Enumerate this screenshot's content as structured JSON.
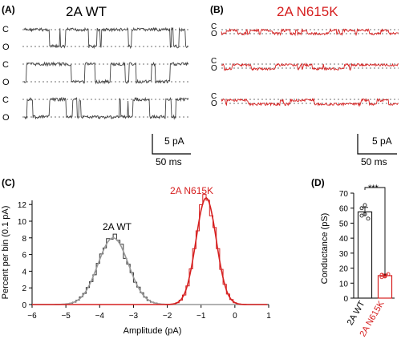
{
  "panels": {
    "A": {
      "letter": "(A)",
      "title": "2A WT",
      "trace_labels": [
        "C",
        "O"
      ],
      "scale_current": "5 pA",
      "scale_time": "50 ms",
      "trace_color": "#444444"
    },
    "B": {
      "letter": "(B)",
      "title": "2A N615K",
      "trace_labels": [
        "C",
        "O"
      ],
      "scale_current": "5 pA",
      "scale_time": "50 ms",
      "trace_color": "#d62020"
    },
    "C": {
      "letter": "(C)",
      "wt_label": "2A WT",
      "mut_label": "2A N615K"
    },
    "D": {
      "letter": "(D)",
      "significance": "***"
    }
  },
  "chart_data": [
    {
      "type": "histogram",
      "xlabel": "Amplitude (pA)",
      "ylabel": "Percent per bin (0.1 pA)",
      "xlim": [
        -6,
        1
      ],
      "ylim": [
        0,
        12.5
      ],
      "xticks": [
        -6,
        -5,
        -4,
        -3,
        -2,
        -1,
        0,
        1
      ],
      "yticks": [
        0,
        2,
        4,
        6,
        8,
        10,
        12
      ],
      "series": [
        {
          "name": "2A WT",
          "color": "#333333",
          "fit_mean": -3.6,
          "fit_sd": 0.45,
          "fit_peak": 8.0
        },
        {
          "name": "2A N615K",
          "color": "#d62020",
          "fit_mean": -0.85,
          "fit_sd": 0.3,
          "fit_peak": 12.8
        }
      ]
    },
    {
      "type": "bar",
      "categories": [
        "2A WT",
        "2A N615K"
      ],
      "values": [
        57.5,
        15
      ],
      "errors": [
        3,
        1
      ],
      "points": [
        [
          60,
          56,
          53,
          55,
          62
        ],
        [
          14,
          15,
          16,
          15.5,
          14.5
        ]
      ],
      "colors": [
        "#222222",
        "#d62020"
      ],
      "ylabel": "Conductance (pS)",
      "ylim": [
        0,
        70
      ],
      "yticks": [
        0,
        10,
        20,
        30,
        40,
        50,
        60,
        70
      ]
    }
  ]
}
